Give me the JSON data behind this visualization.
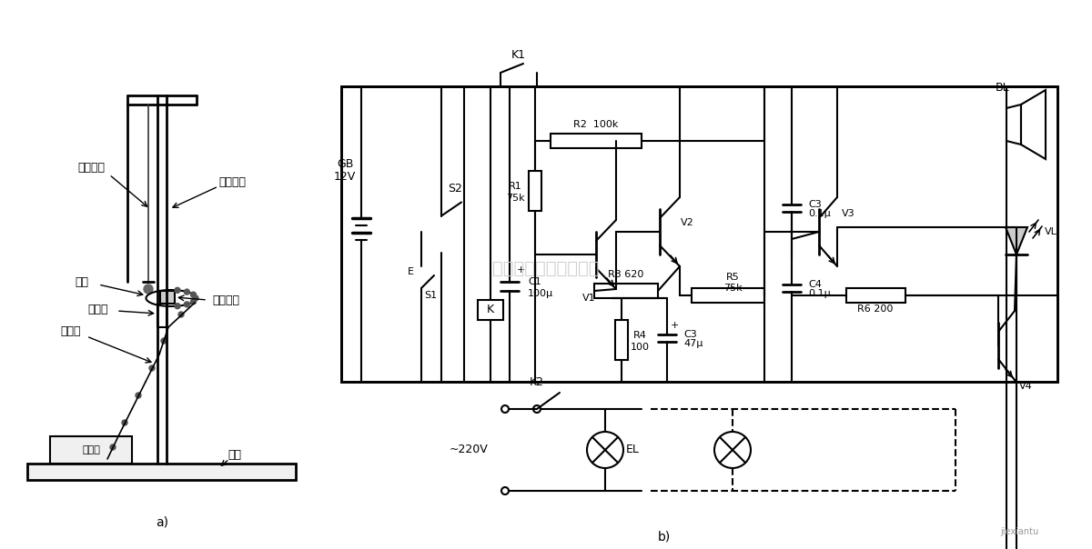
{
  "bg_color": "#ffffff",
  "fig_width": 12.0,
  "fig_height": 6.04,
  "dpi": 100,
  "labels": {
    "duogu_tongxian": "多股铜线",
    "jinshu_zhijia": "金属支架",
    "tong_zhuti": "铜柱体",
    "jueyuan_jiaju": "绝缘夹具",
    "tong_quan": "铜圈",
    "ruan_daoxian": "软导线",
    "di_zuo": "底座",
    "bao_jing_qi": "报警器",
    "label_a": "a)",
    "label_b": "b)",
    "GB_label": "GB",
    "V12": "12V",
    "K1": "K1",
    "S2": "S2",
    "E_label": "E",
    "S1_label": "S1",
    "K_label": "K",
    "R1_label": "R1",
    "R1_val": "75k",
    "V1_label": "V1",
    "R2_label": "R2  100k",
    "V2_label": "V2",
    "R3_label": "R3 620",
    "C1_label": "C1",
    "C1_val": "100μ",
    "C1_plus": "+",
    "R4_label": "R4",
    "R4_val": "100",
    "C3_label": "C3",
    "C3_val": "47μ",
    "C3_plus": "+",
    "R5_label": "R5",
    "R5_val": "75k",
    "V3_label": "V3",
    "BL_label": "BL",
    "C3b_label": "C3",
    "C3b_val": "0.1μ",
    "C4_label": "C4",
    "C4_val": "0.1μ",
    "R6_label": "R6 200",
    "VL_label": "VL",
    "V4_label": "V4",
    "K2_label": "K2",
    "V220_label": "~220V",
    "EL_label": "EL"
  }
}
